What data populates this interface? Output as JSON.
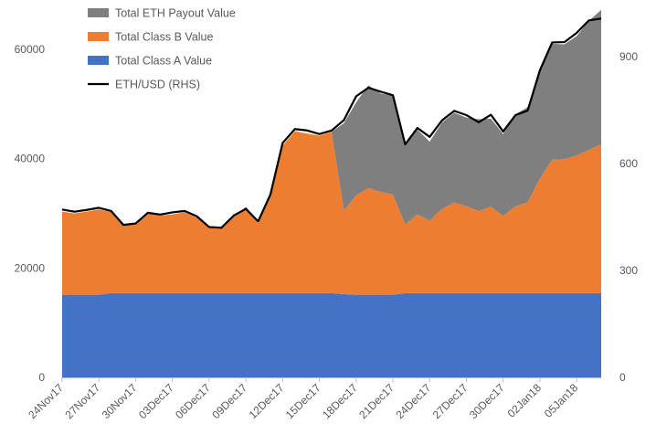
{
  "chart_data": {
    "type": "area",
    "categories": [
      "24Nov17",
      "25Nov17",
      "26Nov17",
      "27Nov17",
      "28Nov17",
      "29Nov17",
      "30Nov17",
      "01Dec17",
      "02Dec17",
      "03Dec17",
      "04Dec17",
      "05Dec17",
      "06Dec17",
      "07Dec17",
      "08Dec17",
      "09Dec17",
      "10Dec17",
      "11Dec17",
      "12Dec17",
      "13Dec17",
      "14Dec17",
      "15Dec17",
      "16Dec17",
      "17Dec17",
      "18Dec17",
      "19Dec17",
      "20Dec17",
      "21Dec17",
      "22Dec17",
      "23Dec17",
      "24Dec17",
      "25Dec17",
      "26Dec17",
      "27Dec17",
      "28Dec17",
      "29Dec17",
      "30Dec17",
      "31Dec17",
      "01Jan18",
      "02Jan18",
      "03Jan18",
      "04Jan18",
      "05Jan18",
      "06Jan18",
      "07Jan18"
    ],
    "x_tick_labels": [
      "24Nov17",
      "27Nov17",
      "30Nov17",
      "03Dec17",
      "06Dec17",
      "09Dec17",
      "12Dec17",
      "15Dec17",
      "18Dec17",
      "21Dec17",
      "24Dec17",
      "27Dec17",
      "30Dec17",
      "02Jan18",
      "05Jan18"
    ],
    "series": [
      {
        "name": "Total Class A Value",
        "kind": "stacked-area",
        "color": "#4472C4",
        "values": [
          15100,
          15100,
          15100,
          15100,
          15400,
          15400,
          15400,
          15400,
          15400,
          15400,
          15400,
          15400,
          15400,
          15400,
          15400,
          15400,
          15400,
          15400,
          15400,
          15400,
          15400,
          15400,
          15400,
          15200,
          15100,
          15100,
          15100,
          15100,
          15400,
          15400,
          15400,
          15400,
          15400,
          15400,
          15400,
          15400,
          15400,
          15400,
          15400,
          15400,
          15400,
          15400,
          15400,
          15400,
          15400
        ]
      },
      {
        "name": "Total Class B Value",
        "kind": "stacked-area",
        "color": "#ED7D31",
        "values": [
          15200,
          14900,
          15200,
          15600,
          14800,
          12300,
          12700,
          14500,
          14200,
          14400,
          14800,
          13800,
          12000,
          11900,
          14000,
          15800,
          12800,
          18000,
          27000,
          29600,
          29200,
          28800,
          29500,
          15300,
          18200,
          19500,
          18800,
          18300,
          12600,
          14400,
          13300,
          15400,
          16600,
          15900,
          15000,
          15800,
          14100,
          15900,
          16600,
          21000,
          24400,
          24500,
          25200,
          26200,
          27200
        ]
      },
      {
        "name": "Total ETH Payout Value",
        "kind": "stacked-area",
        "color": "#7F7F7F",
        "values": [
          0,
          0,
          0,
          0,
          0,
          0,
          0,
          0,
          0,
          0,
          0,
          0,
          0,
          0,
          0,
          0,
          0,
          0,
          0,
          0,
          0,
          0,
          0,
          16000,
          17000,
          18800,
          18000,
          18100,
          14600,
          15500,
          14400,
          15800,
          16400,
          16200,
          16800,
          16100,
          15000,
          16800,
          17400,
          19800,
          21200,
          21000,
          21800,
          23600,
          24600
        ]
      },
      {
        "name": "ETH/USD (RHS)",
        "kind": "line",
        "axis": "right",
        "color": "#000000",
        "values": [
          471,
          465,
          470,
          476,
          467,
          428,
          432,
          462,
          457,
          463,
          467,
          452,
          422,
          420,
          454,
          473,
          438,
          513,
          658,
          697,
          693,
          683,
          693,
          722,
          789,
          813,
          802,
          792,
          654,
          700,
          675,
          721,
          748,
          736,
          716,
          737,
          690,
          736,
          749,
          862,
          940,
          941,
          967,
          1002,
          1007
        ]
      }
    ],
    "y_left": {
      "ticks": [
        "0",
        "20000",
        "40000",
        "60000"
      ],
      "ylim": [
        0,
        66000
      ]
    },
    "y_right": {
      "ticks": [
        "0",
        "300",
        "600",
        "900"
      ],
      "ylim": [
        0,
        1013
      ]
    },
    "legend_position": "top-left",
    "grid": false
  }
}
